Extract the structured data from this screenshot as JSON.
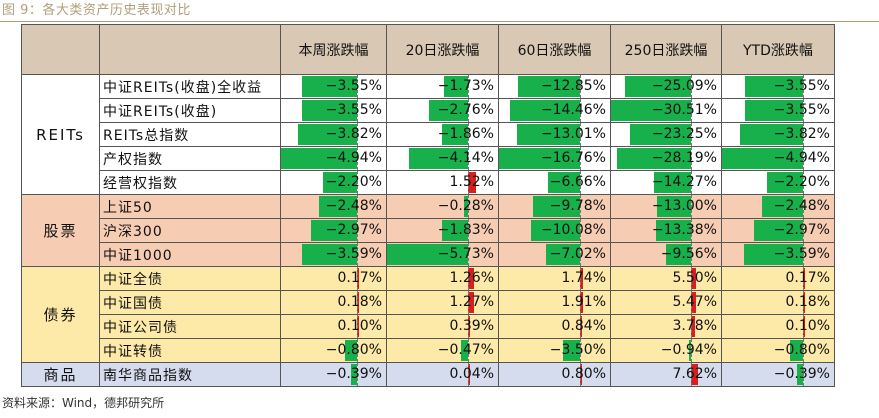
{
  "caption": "图 9：各大类资产历史表现对比",
  "footer": "资料来源：Wind，德邦研究所",
  "header": {
    "columns": [
      "本周涨跌幅",
      "20日涨跌幅",
      "60日涨跌幅",
      "250日涨跌幅",
      "YTD涨跌幅"
    ]
  },
  "colors": {
    "negative": "#17b04a",
    "positive": "#d61f1f"
  },
  "groups": [
    {
      "name": "REITs",
      "class": "g-reits",
      "rows": [
        {
          "name": "中证REITs(收盘)全收益",
          "values": [
            -3.55,
            -1.73,
            -12.85,
            -25.09,
            -3.55
          ],
          "labels": [
            "−3.55%",
            "−1.73%",
            "−12.85%",
            "−25.09%",
            "−3.55%"
          ]
        },
        {
          "name": "中证REITs(收盘)",
          "values": [
            -3.55,
            -2.76,
            -14.46,
            -30.51,
            -3.55
          ],
          "labels": [
            "−3.55%",
            "−2.76%",
            "−14.46%",
            "−30.51%",
            "−3.55%"
          ]
        },
        {
          "name": "REITs总指数",
          "values": [
            -3.82,
            -1.86,
            -13.01,
            -23.25,
            -3.82
          ],
          "labels": [
            "−3.82%",
            "−1.86%",
            "−13.01%",
            "−23.25%",
            "−3.82%"
          ]
        },
        {
          "name": "产权指数",
          "values": [
            -4.94,
            -4.14,
            -16.76,
            -28.19,
            -4.94
          ],
          "labels": [
            "−4.94%",
            "−4.14%",
            "−16.76%",
            "−28.19%",
            "−4.94%"
          ]
        },
        {
          "name": "经营权指数",
          "values": [
            -2.2,
            1.52,
            -6.66,
            -14.27,
            -2.2
          ],
          "labels": [
            "−2.20%",
            "1.52%",
            "−6.66%",
            "−14.27%",
            "−2.20%"
          ]
        }
      ]
    },
    {
      "name": "股票",
      "class": "g-stock",
      "rows": [
        {
          "name": "上证50",
          "values": [
            -2.48,
            -0.28,
            -9.78,
            -13.0,
            -2.48
          ],
          "labels": [
            "−2.48%",
            "−0.28%",
            "−9.78%",
            "−13.00%",
            "−2.48%"
          ]
        },
        {
          "name": "沪深300",
          "values": [
            -2.97,
            -1.83,
            -10.08,
            -13.38,
            -2.97
          ],
          "labels": [
            "−2.97%",
            "−1.83%",
            "−10.08%",
            "−13.38%",
            "−2.97%"
          ]
        },
        {
          "name": "中证1000",
          "values": [
            -3.59,
            -5.73,
            -7.02,
            -9.56,
            -3.59
          ],
          "labels": [
            "−3.59%",
            "−5.73%",
            "−7.02%",
            "−9.56%",
            "−3.59%"
          ]
        }
      ]
    },
    {
      "name": "债券",
      "class": "g-bond",
      "rows": [
        {
          "name": "中证全债",
          "values": [
            0.17,
            1.26,
            1.74,
            5.5,
            0.17
          ],
          "labels": [
            "0.17%",
            "1.26%",
            "1.74%",
            "5.50%",
            "0.17%"
          ]
        },
        {
          "name": "中证国债",
          "values": [
            0.18,
            1.27,
            1.91,
            5.47,
            0.18
          ],
          "labels": [
            "0.18%",
            "1.27%",
            "1.91%",
            "5.47%",
            "0.18%"
          ]
        },
        {
          "name": "中证公司债",
          "values": [
            0.1,
            0.39,
            0.84,
            3.78,
            0.1
          ],
          "labels": [
            "0.10%",
            "0.39%",
            "0.84%",
            "3.78%",
            "0.10%"
          ]
        },
        {
          "name": "中证转债",
          "values": [
            -0.8,
            -0.47,
            -3.5,
            -0.94,
            -0.8
          ],
          "labels": [
            "−0.80%",
            "−0.47%",
            "−3.50%",
            "−0.94%",
            "−0.80%"
          ]
        }
      ]
    },
    {
      "name": "商品",
      "class": "g-comm",
      "rows": [
        {
          "name": "南华商品指数",
          "values": [
            -0.39,
            0.04,
            0.8,
            7.62,
            -0.39
          ],
          "labels": [
            "−0.39%",
            "0.04%",
            "0.80%",
            "7.62%",
            "−0.39%"
          ]
        }
      ]
    }
  ]
}
